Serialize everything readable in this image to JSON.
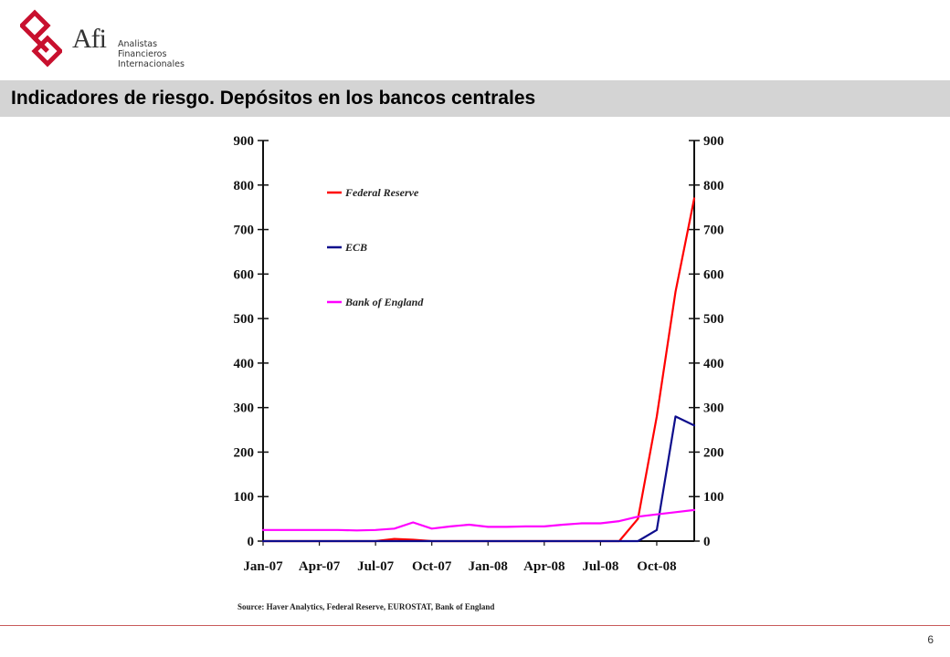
{
  "header": {
    "logo_text": "Afi",
    "logo_lines": [
      "Analistas",
      "Financieros",
      "Internacionales"
    ],
    "brand_color": "#c8102e"
  },
  "slide": {
    "title": "Indicadores de riesgo. Depósitos en los bancos centrales",
    "page_number": "6"
  },
  "chart_data": {
    "type": "line",
    "title": "",
    "xlabel": "",
    "ylabel": "",
    "x_tick_labels": [
      "Jan-07",
      "Apr-07",
      "Jul-07",
      "Oct-07",
      "Jan-08",
      "Apr-08",
      "Jul-08",
      "Oct-08"
    ],
    "ylim": [
      0,
      900
    ],
    "y_ticks": [
      0,
      100,
      200,
      300,
      400,
      500,
      600,
      700,
      800,
      900
    ],
    "y2lim": [
      0,
      900
    ],
    "y2_ticks": [
      0,
      100,
      200,
      300,
      400,
      500,
      600,
      700,
      800,
      900
    ],
    "grid": false,
    "legend_position": "top-left",
    "x_months": [
      0,
      1,
      2,
      3,
      4,
      5,
      6,
      7,
      8,
      9,
      10,
      11,
      12,
      13,
      14,
      15,
      16,
      17,
      18,
      19,
      20,
      21,
      22,
      23
    ],
    "series": [
      {
        "name": "Federal Reserve",
        "color": "#ff0000",
        "values": [
          0,
          0,
          0,
          0,
          0,
          0,
          0,
          5,
          3,
          0,
          0,
          0,
          0,
          0,
          0,
          0,
          0,
          0,
          0,
          0,
          50,
          280,
          560,
          770
        ]
      },
      {
        "name": "ECB",
        "color": "#0d0d8c",
        "values": [
          0,
          0,
          0,
          0,
          0,
          0,
          0,
          0,
          0,
          0,
          0,
          0,
          0,
          0,
          0,
          0,
          0,
          0,
          0,
          0,
          0,
          25,
          280,
          260
        ]
      },
      {
        "name": "Bank of England",
        "color": "#ff00ff",
        "values": [
          25,
          25,
          25,
          25,
          25,
          24,
          25,
          28,
          42,
          28,
          33,
          37,
          32,
          32,
          33,
          33,
          37,
          40,
          40,
          45,
          55,
          60,
          65,
          70
        ]
      }
    ],
    "source": "Source: Haver Analytics, Federal Reserve, EUROSTAT, Bank of England"
  }
}
